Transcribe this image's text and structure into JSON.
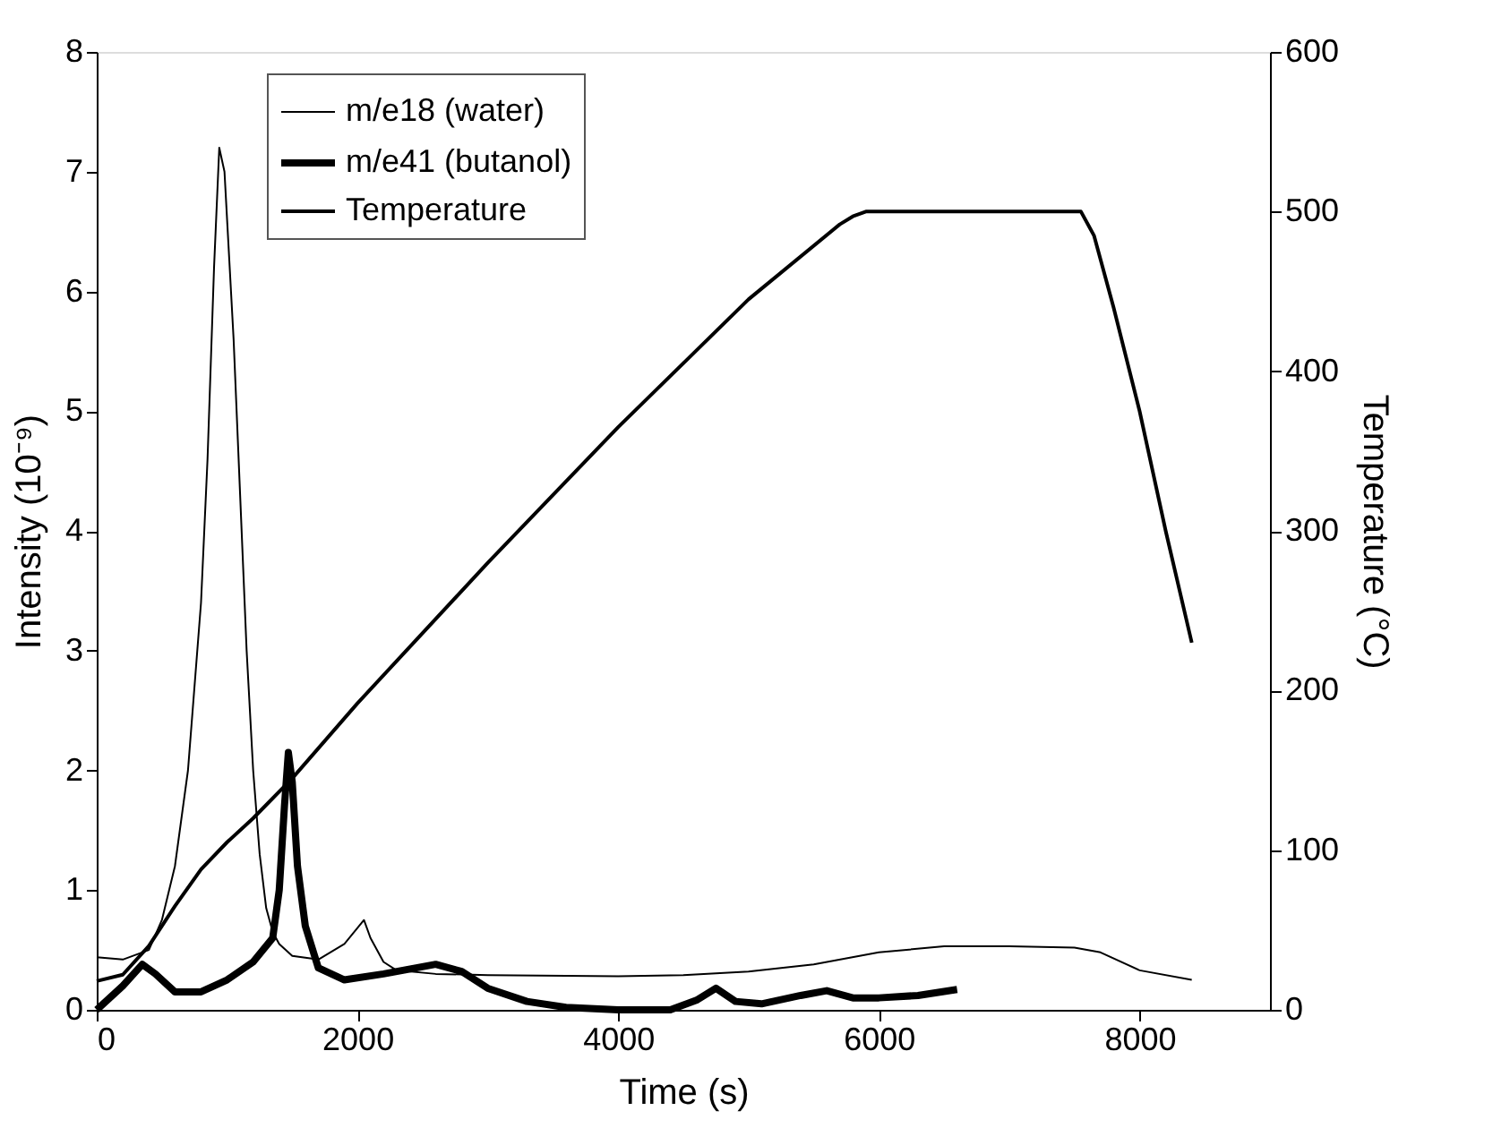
{
  "chart_data": {
    "type": "line",
    "xlabel": "Time (s)",
    "ylabel": "Intensity (10⁻⁹)",
    "y2label": "Temperature (°C)",
    "xlim": [
      0,
      9000
    ],
    "xticks": [
      0,
      2000,
      4000,
      6000,
      8000
    ],
    "ylim": [
      0,
      8
    ],
    "yticks": [
      0,
      1,
      2,
      3,
      4,
      5,
      6,
      7,
      8
    ],
    "y2lim": [
      0,
      600
    ],
    "y2ticks": [
      0,
      100,
      200,
      300,
      400,
      500,
      600
    ],
    "grid": false,
    "legend": "top left",
    "marker": "none",
    "line_style": "solid",
    "series": [
      {
        "name": "m/e18 (water)",
        "color": "#000000",
        "x": [
          0,
          200,
          400,
          500,
          600,
          700,
          800,
          850,
          900,
          940,
          980,
          1050,
          1100,
          1150,
          1200,
          1250,
          1300,
          1350,
          1400,
          1500,
          1700,
          1900,
          2050,
          2100,
          2200,
          2300,
          2600,
          3000,
          4000,
          4500,
          5000,
          5500,
          6000,
          6500,
          7000,
          7500,
          7700,
          8000,
          8400
        ],
        "values": [
          0.44,
          0.42,
          0.5,
          0.75,
          1.2,
          2.0,
          3.4,
          4.6,
          6.2,
          7.2,
          7.0,
          5.6,
          4.3,
          3.0,
          2.0,
          1.3,
          0.85,
          0.65,
          0.55,
          0.45,
          0.42,
          0.55,
          0.75,
          0.6,
          0.4,
          0.33,
          0.3,
          0.29,
          0.28,
          0.29,
          0.32,
          0.38,
          0.48,
          0.53,
          0.53,
          0.52,
          0.48,
          0.33,
          0.25
        ]
      },
      {
        "name": "m/e41 (butanol)",
        "color": "#000000",
        "x": [
          0,
          200,
          350,
          450,
          600,
          800,
          1000,
          1200,
          1350,
          1400,
          1440,
          1470,
          1500,
          1540,
          1600,
          1700,
          1900,
          2200,
          2600,
          2800,
          3000,
          3300,
          3600,
          4000,
          4400,
          4600,
          4750,
          4900,
          5100,
          5400,
          5600,
          5800,
          6000,
          6300,
          6600
        ],
        "values": [
          0,
          0.2,
          0.38,
          0.3,
          0.15,
          0.15,
          0.25,
          0.4,
          0.6,
          1.0,
          1.7,
          2.15,
          1.9,
          1.2,
          0.7,
          0.35,
          0.25,
          0.3,
          0.38,
          0.32,
          0.18,
          0.07,
          0.02,
          0.0,
          0.0,
          0.08,
          0.18,
          0.07,
          0.05,
          0.12,
          0.16,
          0.1,
          0.1,
          0.12,
          0.17
        ]
      },
      {
        "name": "Temperature",
        "color": "#000000",
        "axis": "y2",
        "x": [
          0,
          200,
          400,
          600,
          800,
          1000,
          1200,
          1500,
          2000,
          3000,
          4000,
          5000,
          5700,
          5800,
          5900,
          6000,
          7000,
          7550,
          7650,
          7800,
          8000,
          8200,
          8400
        ],
        "values": [
          18,
          22,
          40,
          65,
          88,
          105,
          120,
          145,
          192,
          280,
          365,
          445,
          492,
          497,
          500,
          500,
          500,
          500,
          485,
          440,
          375,
          300,
          230
        ]
      }
    ]
  }
}
